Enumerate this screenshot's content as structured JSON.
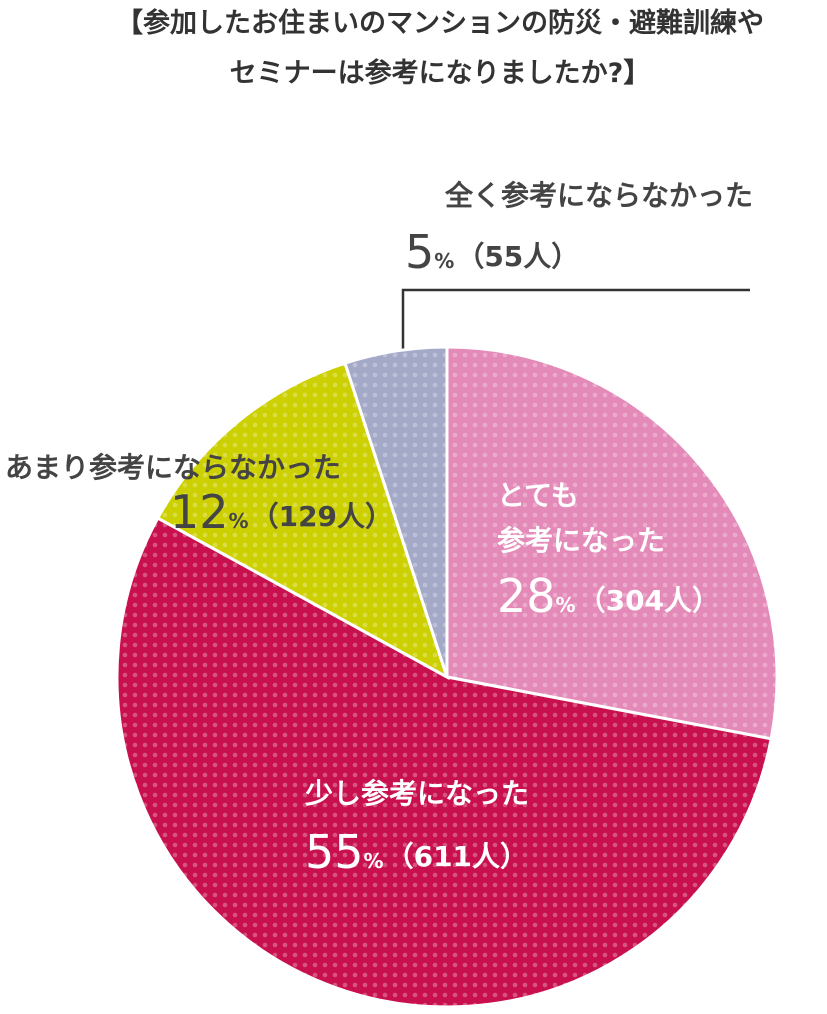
{
  "chart_data": {
    "type": "pie",
    "title": [
      "【参加したお住まいのマンションの防災・避難訓練や",
      "セミナーは参考になりましたか?】"
    ],
    "categories": [
      "とても\n参考になった",
      "少し参考になった",
      "あまり参考にならなかった",
      "全く参考にならなかった"
    ],
    "values": [
      28,
      55,
      12,
      5
    ],
    "value_labels": [
      "28%",
      "55%",
      "12%",
      "5%"
    ],
    "count_labels": [
      "（304人）",
      "（611人）",
      "（129人）",
      "（55人）"
    ],
    "colors": [
      "#e48ab9",
      "#c8104f",
      "#cdd000",
      "#a4a9c8"
    ]
  }
}
